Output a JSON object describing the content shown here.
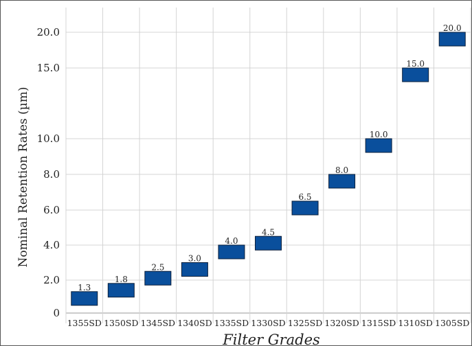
{
  "chart_data": {
    "type": "bar",
    "title": "",
    "xlabel": "Filter Grades",
    "ylabel": "Nominal Retention Rates (µm)",
    "categories": [
      "1355SD",
      "1350SD",
      "1345SD",
      "1340SD",
      "1335SD",
      "1330SD",
      "1325SD",
      "1320SD",
      "1315SD",
      "1310SD",
      "1305SD"
    ],
    "values": [
      1.3,
      1.8,
      2.5,
      3.0,
      4.0,
      4.5,
      6.5,
      8.0,
      10.0,
      15.0,
      20.0
    ],
    "data_labels": [
      "1.3",
      "1.8",
      "2.5",
      "3.0",
      "4.0",
      "4.5",
      "6.5",
      "8.0",
      "10.0",
      "15.0",
      "20.0"
    ],
    "y_ticks": [
      0,
      2,
      4,
      6,
      8,
      10,
      15,
      20
    ],
    "y_tick_labels": [
      "0",
      "2.0",
      "4.0",
      "6.0",
      "8.0",
      "10.0",
      "15.0",
      "20.0"
    ],
    "ylim": [
      0,
      20
    ],
    "grid": true,
    "legend": "none",
    "bar_color": "#0a4f9c",
    "bar_edge_color": "#0b1f3a"
  }
}
